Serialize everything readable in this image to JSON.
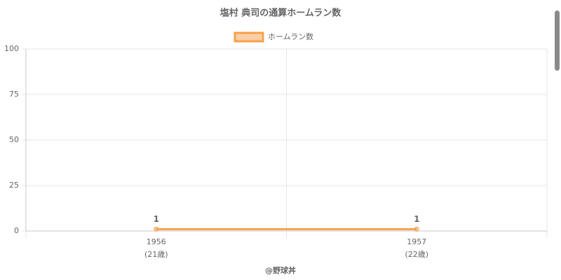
{
  "chart_data": {
    "type": "line",
    "title": "塩村 典司の通算ホームラン数",
    "categories": [
      "1956",
      "1957"
    ],
    "sublabels": [
      "(21歳)",
      "(22歳)"
    ],
    "series": [
      {
        "name": "ホームラン数",
        "color": "#f7a04b",
        "values": [
          1,
          1
        ]
      }
    ],
    "ylim": [
      0,
      100
    ],
    "yticks": [
      0,
      25,
      50,
      75,
      100
    ],
    "grid": true,
    "legend": "top",
    "credit": "@野球丼"
  }
}
